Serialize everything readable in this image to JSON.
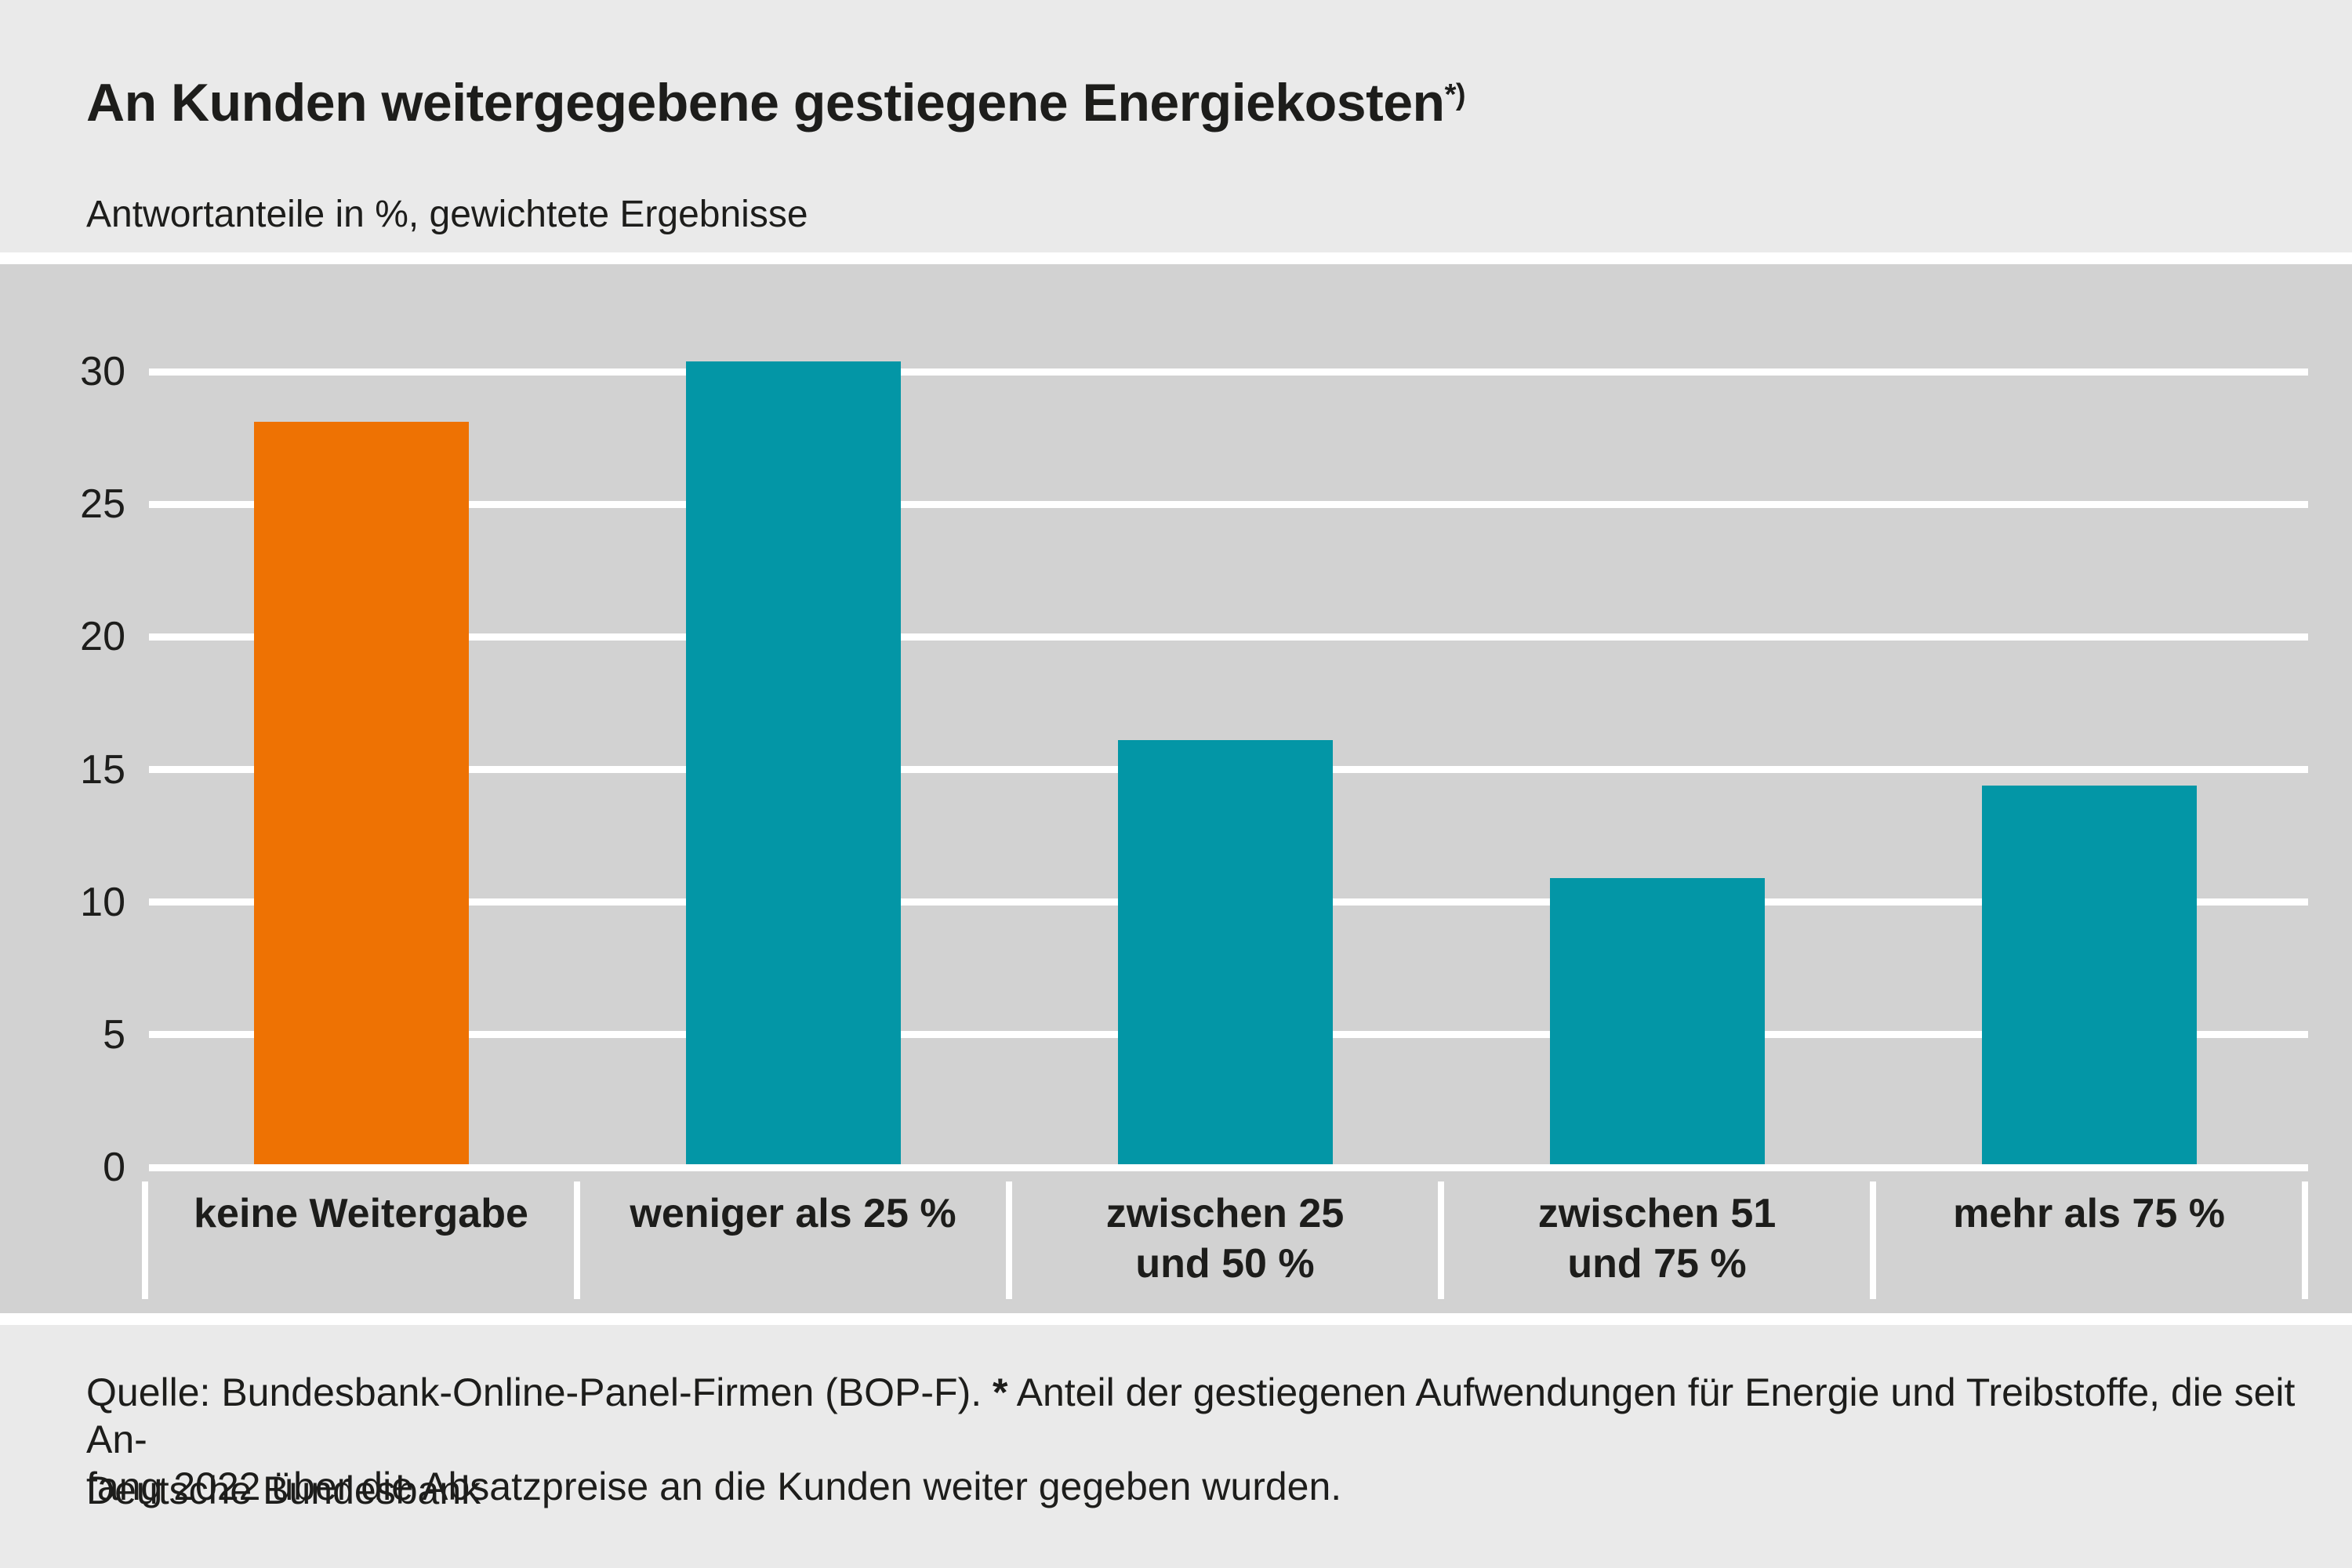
{
  "header": {
    "title": "An Kunden weitergegebene gestiegene Energiekosten",
    "title_superscript": "*)",
    "subtitle": "Antwortanteile in %, gewichtete Ergebnisse"
  },
  "chart_data": {
    "type": "bar",
    "title": "An Kunden weitergegebene gestiegene Energiekosten*)",
    "subtitle": "Antwortanteile in %, gewichtete Ergebnisse",
    "categories": [
      "keine Weitergabe",
      "weniger als 25 %",
      "zwischen 25\nund 50 %",
      "zwischen 51\nund 75 %",
      "mehr als 75 %"
    ],
    "values": [
      28.1,
      30.4,
      16.1,
      10.9,
      14.4
    ],
    "bar_colors": [
      "#ee7203",
      "#0396a6",
      "#0396a6",
      "#0396a6",
      "#0396a6"
    ],
    "xlabel": "",
    "ylabel": "Antwortanteile in %",
    "ylim": [
      0,
      34
    ],
    "yticks": [
      0,
      5,
      10,
      15,
      20,
      25,
      30
    ],
    "grid": true,
    "gridline_color": "#ffffff",
    "plot_background": "#d2d2d2",
    "legend": "none"
  },
  "footer": {
    "source_prefix": "Quelle: Bundesbank-Online-Panel-Firmen (BOP-F). ",
    "source_asterisk": "*",
    "source_note_line1": " Anteil der gestiegenen Aufwendungen für Energie und Treibstoffe, die seit An-",
    "source_note_line2": "fang 2022 über die Absatzpreise an die Kunden weiter gegeben wurden.",
    "publisher": "Deutsche Bundesbank"
  },
  "colors": {
    "page_background": "#eaeaea",
    "chart_band_background": "#d2d2d2",
    "accent_orange": "#ee7203",
    "accent_teal": "#0396a6",
    "gridline": "#ffffff",
    "text": "#1d1d1b"
  }
}
